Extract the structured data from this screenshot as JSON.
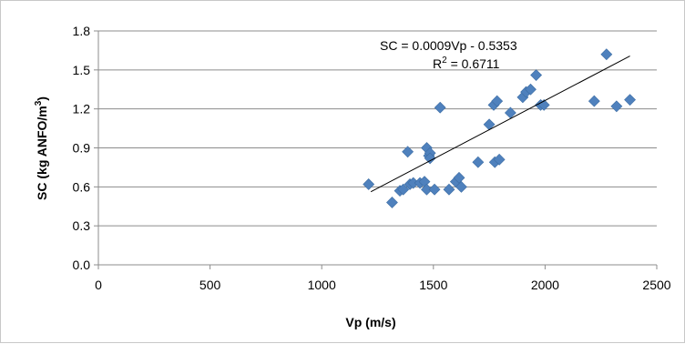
{
  "chart_data": {
    "type": "scatter",
    "xlabel": "Vp (m/s)",
    "ylabel_main": "SC (kg ANFO/m",
    "ylabel_sup": "3",
    "ylabel_end": ")",
    "xlim": [
      0,
      2500
    ],
    "ylim": [
      0.0,
      1.8
    ],
    "xticks": [
      0,
      500,
      1000,
      1500,
      2000,
      2500
    ],
    "yticks": [
      "0.0",
      "0.3",
      "0.6",
      "0.9",
      "1.2",
      "1.5",
      "1.8"
    ],
    "grid": "horizontal",
    "legend": "none",
    "marker_color": "#4F81BD",
    "trendline_color": "#000000",
    "equation": "SC = 0.0009Vp - 0.5353",
    "r2_prefix": "R",
    "r2_sup": "2",
    "r2_suffix": " = 0.6711",
    "trendline": {
      "slope": 0.0009,
      "intercept": -0.5353,
      "x_range": [
        1220,
        2380
      ]
    },
    "points": [
      {
        "x": 1210,
        "y": 0.62
      },
      {
        "x": 1315,
        "y": 0.48
      },
      {
        "x": 1350,
        "y": 0.57
      },
      {
        "x": 1365,
        "y": 0.58
      },
      {
        "x": 1385,
        "y": 0.87
      },
      {
        "x": 1395,
        "y": 0.62
      },
      {
        "x": 1410,
        "y": 0.63
      },
      {
        "x": 1440,
        "y": 0.63
      },
      {
        "x": 1460,
        "y": 0.64
      },
      {
        "x": 1470,
        "y": 0.58
      },
      {
        "x": 1470,
        "y": 0.9
      },
      {
        "x": 1480,
        "y": 0.84
      },
      {
        "x": 1485,
        "y": 0.86
      },
      {
        "x": 1485,
        "y": 0.82
      },
      {
        "x": 1505,
        "y": 0.58
      },
      {
        "x": 1530,
        "y": 1.21
      },
      {
        "x": 1570,
        "y": 0.58
      },
      {
        "x": 1600,
        "y": 0.64
      },
      {
        "x": 1615,
        "y": 0.67
      },
      {
        "x": 1625,
        "y": 0.6
      },
      {
        "x": 1700,
        "y": 0.79
      },
      {
        "x": 1750,
        "y": 1.08
      },
      {
        "x": 1770,
        "y": 1.23
      },
      {
        "x": 1775,
        "y": 0.79
      },
      {
        "x": 1785,
        "y": 1.26
      },
      {
        "x": 1795,
        "y": 0.81
      },
      {
        "x": 1845,
        "y": 1.17
      },
      {
        "x": 1900,
        "y": 1.29
      },
      {
        "x": 1915,
        "y": 1.33
      },
      {
        "x": 1935,
        "y": 1.35
      },
      {
        "x": 1960,
        "y": 1.46
      },
      {
        "x": 1980,
        "y": 1.23
      },
      {
        "x": 1995,
        "y": 1.23
      },
      {
        "x": 2220,
        "y": 1.26
      },
      {
        "x": 2275,
        "y": 1.62
      },
      {
        "x": 2320,
        "y": 1.22
      },
      {
        "x": 2380,
        "y": 1.27
      }
    ]
  }
}
